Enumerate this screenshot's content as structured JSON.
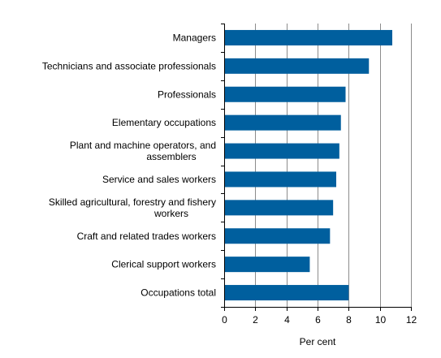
{
  "chart_data": {
    "type": "bar",
    "orientation": "horizontal",
    "categories": [
      "Managers",
      "Technicians and associate professionals",
      "Professionals",
      "Elementary occupations",
      "Plant and machine operators, and assemblers",
      "Service and sales workers",
      "Skilled agricultural, forestry and fishery workers",
      "Craft and related trades workers",
      "Clerical support workers",
      "Occupations total"
    ],
    "category_lines": [
      [
        "Managers"
      ],
      [
        "Technicians and associate professionals"
      ],
      [
        "Professionals"
      ],
      [
        "Elementary occupations"
      ],
      [
        "Plant and machine operators, and",
        "assemblers"
      ],
      [
        "Service and sales workers"
      ],
      [
        "Skilled agricultural, forestry and fishery",
        "workers"
      ],
      [
        "Craft and related trades workers"
      ],
      [
        "Clerical support workers"
      ],
      [
        "Occupations total"
      ]
    ],
    "values": [
      10.8,
      9.3,
      7.8,
      7.5,
      7.4,
      7.2,
      7.0,
      6.8,
      5.5,
      8.0
    ],
    "xlabel": "Per cent",
    "xlim": [
      0,
      12
    ],
    "xticks": [
      0,
      2,
      4,
      6,
      8,
      10,
      12
    ],
    "grid": "vertical",
    "bar_color": "#005f9e",
    "grid_color": "#8c8c8c"
  }
}
